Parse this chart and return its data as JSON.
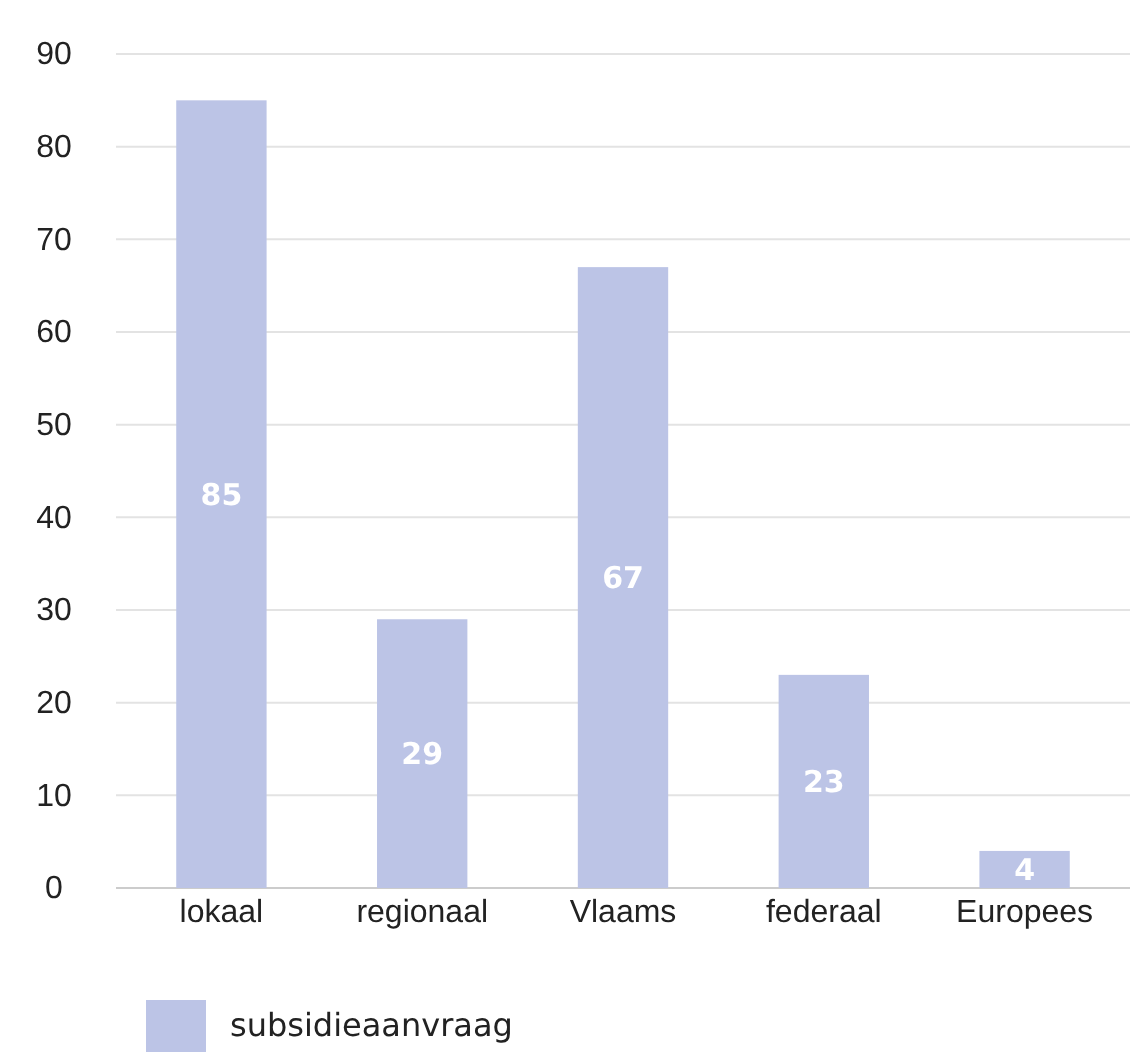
{
  "chart_data": {
    "type": "bar",
    "categories": [
      "lokaal",
      "regionaal",
      "Vlaams",
      "federaal",
      "Europees"
    ],
    "series": [
      {
        "name": "subsidieaanvraag",
        "color": "#bcc4e6",
        "values": [
          85,
          29,
          67,
          23,
          4
        ]
      }
    ],
    "ylim": [
      0,
      90
    ],
    "yticks": [
      0,
      10,
      20,
      30,
      40,
      50,
      60,
      70,
      80,
      90
    ],
    "grid": "y",
    "legend": "bottom left",
    "data_labels": true
  }
}
